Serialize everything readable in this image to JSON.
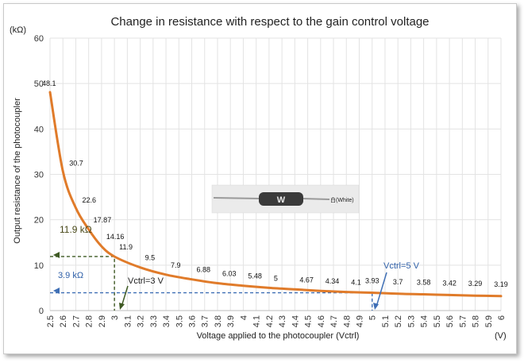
{
  "chart_data": {
    "type": "line",
    "title": "Change in resistance with respect to the gain control voltage",
    "xlabel": "Voltage applied to the photocoupler (Vctrl)",
    "x_unit": "(V)",
    "ylabel": "Output resistance of the photocoupler",
    "y_unit": "(kΩ)",
    "xlim": [
      2.5,
      6.0
    ],
    "ylim": [
      0,
      60
    ],
    "x_ticks": [
      "2.5",
      "2.6",
      "2.7",
      "2.8",
      "2.9",
      "3",
      "3.1",
      "3.2",
      "3.3",
      "3.4",
      "3.5",
      "3.6",
      "3.7",
      "3.8",
      "3.9",
      "4",
      "4.1",
      "4.2",
      "4.3",
      "4.4",
      "4.5",
      "4.6",
      "4.7",
      "4.8",
      "4.9",
      "5",
      "5.1",
      "5.2",
      "5.3",
      "5.4",
      "5.5",
      "5.6",
      "5.7",
      "5.8",
      "5.9",
      "6"
    ],
    "y_ticks": [
      "0",
      "10",
      "20",
      "30",
      "40",
      "50",
      "60"
    ],
    "grid": true,
    "legend": "none",
    "line_color": "#e07b2a",
    "series": [
      {
        "x": [
          2.5,
          2.6,
          2.7,
          2.8,
          2.9,
          3.0,
          3.2,
          3.4,
          3.6,
          3.8,
          4.0,
          4.2,
          4.4,
          4.6,
          4.8,
          5.0,
          5.2,
          5.4,
          5.6,
          5.8,
          6.0
        ],
        "values": [
          48.1,
          30.7,
          22.6,
          17.87,
          14.16,
          11.9,
          9.5,
          7.9,
          6.88,
          6.03,
          5.48,
          5,
          4.67,
          4.34,
          4.1,
          3.93,
          3.7,
          3.58,
          3.42,
          3.29,
          3.19
        ],
        "labels": [
          "48.1",
          "30.7",
          "22.6",
          "17.87",
          "14.16",
          "11.9",
          "9.5",
          "7.9",
          "6.88",
          "6.03",
          "5.48",
          "5",
          "4.67",
          "4.34",
          "4.1",
          "3.93",
          "3.7",
          "3.58",
          "3.42",
          "3.29",
          "3.19"
        ]
      }
    ],
    "annotations": [
      {
        "text": "11.9 kΩ",
        "x": 3.0,
        "y": 11.9,
        "color": "#4a4a1a"
      },
      {
        "text": "Vctrl=3 V",
        "x": 3.0,
        "y": 11.9,
        "color": "#222222"
      },
      {
        "text": "3.9 kΩ",
        "x": 5.0,
        "y": 3.93,
        "color": "#2e5fa8"
      },
      {
        "text": "Vctrl=5 V",
        "x": 5.0,
        "y": 3.93,
        "color": "#2e5fa8"
      }
    ],
    "inset_photo": {
      "marking": "W",
      "caption": "白(White)"
    }
  }
}
